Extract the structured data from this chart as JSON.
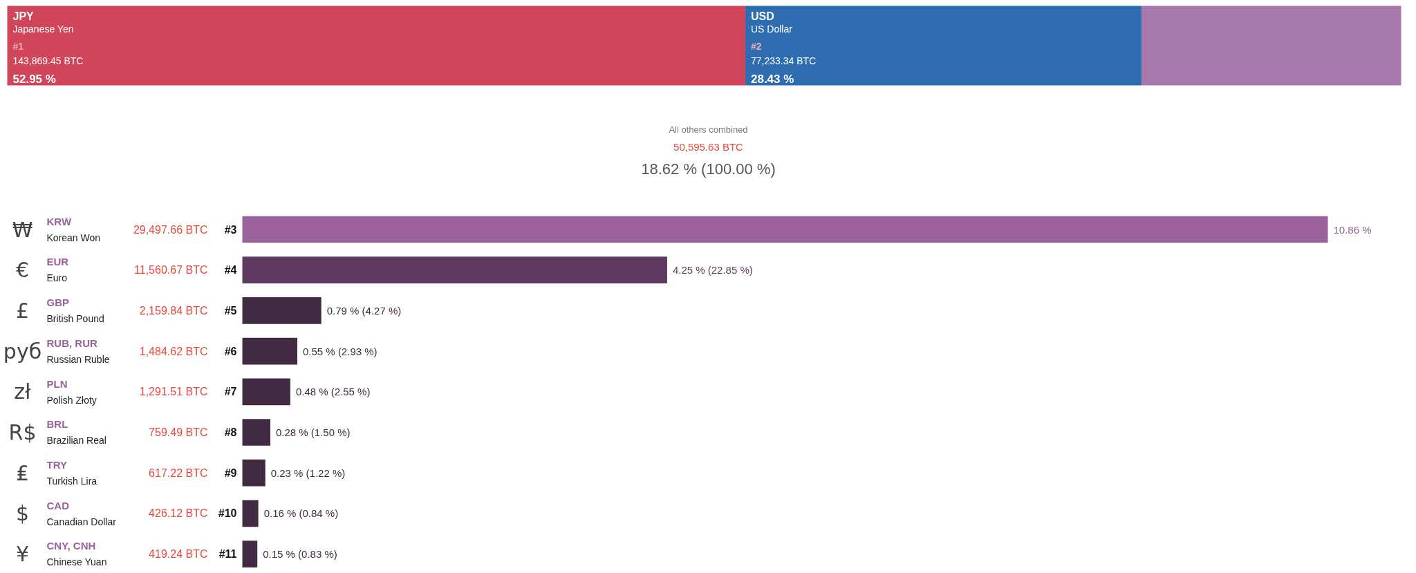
{
  "chart_data": [
    {
      "type": "bar",
      "orientation": "horizontal",
      "stacked": true,
      "categories": [
        null
      ],
      "series": [
        {
          "name": "JPY",
          "color": "#d0455a",
          "values": [
            52.95
          ],
          "value_labels": [
            "52.95 %"
          ]
        },
        {
          "name": "USD",
          "color": "#2e6daf",
          "values": [
            28.43
          ],
          "value_labels": [
            "28.43 %"
          ]
        },
        {
          "color": "#a879ac",
          "values": [
            18.62
          ]
        }
      ],
      "annotations": [
        "Japanese Yen",
        "#1",
        "143,869.45 BTC",
        "US Dollar",
        "#2",
        "77,233.34 BTC",
        "All others combined",
        "50,595.63 BTC",
        "18.62 % (100.00 %)"
      ]
    },
    {
      "type": "bar",
      "orientation": "horizontal",
      "categories": [
        "KRW",
        "EUR",
        "GBP",
        "RUB, RUR",
        "PLN",
        "BRL",
        "TRY",
        "CAD",
        "CNY, CNH"
      ],
      "values": [
        10.86,
        4.25,
        0.79,
        0.55,
        0.48,
        0.28,
        0.23,
        0.16,
        0.15
      ],
      "colors": [
        "#9a619c",
        "#5f3a60",
        "#412a42",
        "#412a42",
        "#412a42",
        "#412a42",
        "#412a42",
        "#412a42",
        "#412a42"
      ],
      "value_labels": [
        "10.86 %",
        "4.25 % (22.85 %)",
        "0.79 % (4.27 %)",
        "0.55 % (2.93 %)",
        "0.48 % (2.55 %)",
        "0.28 % (1.50 %)",
        "0.23 % (1.22 %)",
        "0.16 % (0.84 %)",
        "0.15 % (0.83 %)"
      ],
      "annotations": [
        "₩",
        "Korean Won",
        "29,497.66 BTC",
        "#3",
        "€",
        "Euro",
        "11,560.67 BTC",
        "#4",
        "£",
        "British Pound",
        "2,159.84 BTC",
        "#5",
        "руб",
        "Russian Ruble",
        "1,484.62 BTC",
        "#6",
        "zł",
        "Polish Złoty",
        "1,291.51 BTC",
        "#7",
        "R$",
        "Brazilian Real",
        "759.49 BTC",
        "#8",
        "₤",
        "Turkish Lira",
        "617.22 BTC",
        "#9",
        "$",
        "Canadian Dollar",
        "426.12 BTC",
        "#10",
        "¥",
        "Chinese Yuan",
        "419.24 BTC",
        "#11"
      ]
    }
  ]
}
